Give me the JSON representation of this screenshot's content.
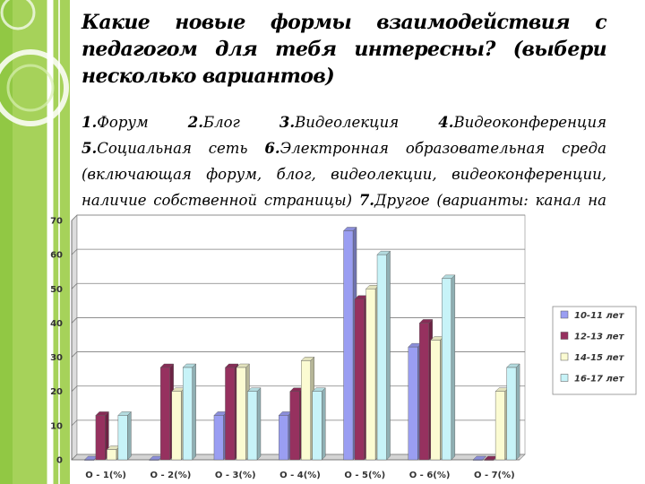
{
  "slide": {
    "title": "Какие новые формы взаимодействия с педагогом для тебя интересны? (выбери несколько вариантов)",
    "options": [
      {
        "num": "1.",
        "text": "Форум"
      },
      {
        "num": "2.",
        "text": "Блог"
      },
      {
        "num": "3.",
        "text": "Видеолекция"
      },
      {
        "num": "4.",
        "text": "Видеоконференция"
      },
      {
        "num": "5.",
        "text": "Социальная сеть"
      },
      {
        "num": "6.",
        "text": "Электронная образовательная среда (включающая форум, блог, видеолекции, видеоконференции, наличие собственной страницы)"
      },
      {
        "num": "7.",
        "text": "Другое (варианты: канал на YouTube, Facebook)"
      }
    ]
  },
  "colors": {
    "background": "#ffffff",
    "green_accent": "#8cc63f",
    "series": [
      "#9a9ef2",
      "#96315f",
      "#fbfbd2",
      "#c7f3f8"
    ]
  },
  "chart_data": {
    "type": "bar",
    "categories": [
      "О - 1(%)",
      "О - 2(%)",
      "О - 3(%)",
      "О - 4(%)",
      "О - 5(%)",
      "О - 6(%)",
      "О - 7(%)"
    ],
    "series": [
      {
        "name": "10-11 лет",
        "values": [
          0,
          0,
          13,
          13,
          67,
          33,
          0
        ]
      },
      {
        "name": "12-13 лет",
        "values": [
          13,
          27,
          27,
          20,
          47,
          40,
          0
        ]
      },
      {
        "name": "14-15 лет",
        "values": [
          3,
          20,
          27,
          29,
          50,
          35,
          20
        ]
      },
      {
        "name": "16-17 лет",
        "values": [
          13,
          27,
          20,
          20,
          60,
          53,
          27
        ]
      }
    ],
    "ylim": [
      0,
      70
    ],
    "yticks": [
      0,
      10,
      20,
      30,
      40,
      50,
      60,
      70
    ],
    "grid": true,
    "legend_position": "right",
    "style": "3d-bar"
  }
}
